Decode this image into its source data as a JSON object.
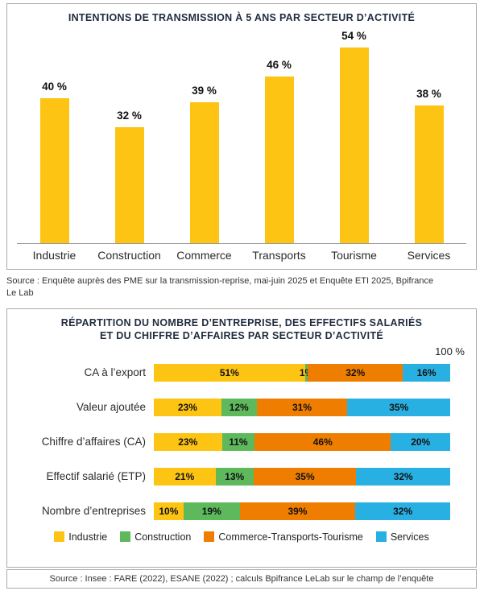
{
  "chart_data": [
    {
      "type": "bar",
      "title": "INTENTIONS DE TRANSMISSION À 5 ANS PAR SECTEUR D’ACTIVITÉ",
      "categories": [
        "Industrie",
        "Construction",
        "Commerce",
        "Transports",
        "Tourisme",
        "Services"
      ],
      "values": [
        40,
        32,
        39,
        46,
        54,
        38
      ],
      "value_labels": [
        "40 %",
        "32 %",
        "39 %",
        "46 %",
        "54 %",
        "38 %"
      ],
      "bar_color": "#FDC413",
      "ylim": [
        0,
        60
      ],
      "legend_position": "none",
      "grid": false
    },
    {
      "type": "bar-horizontal-stacked",
      "title": "RÉPARTITION DU NOMBRE D’ENTREPRISE, DES EFFECTIFS SALARIÉS ET DU CHIFFRE D’AFFAIRES PAR SECTEUR D’ACTIVITÉ",
      "title_lines": [
        "RÉPARTITION DU NOMBRE D’ENTREPRISE, DES EFFECTIFS SALARIÉS",
        "ET DU CHIFFRE D’AFFAIRES PAR SECTEUR D’ACTIVITÉ"
      ],
      "axis_max_label": "100 %",
      "xlim": [
        0,
        100
      ],
      "legend_position": "bottom",
      "categories": [
        "CA à l’export",
        "Valeur ajoutée",
        "Chiffre d’affaires (CA)",
        "Effectif salarié (ETP)",
        "Nombre d’entreprises"
      ],
      "series": [
        {
          "name": "Industrie",
          "color": "#FDC413",
          "values": [
            51,
            23,
            23,
            21,
            10
          ]
        },
        {
          "name": "Construction",
          "color": "#5EB95D",
          "values": [
            1,
            12,
            11,
            13,
            19
          ]
        },
        {
          "name": "Commerce-Transports-Tourisme",
          "color": "#EF7D00",
          "values": [
            32,
            31,
            46,
            35,
            39
          ]
        },
        {
          "name": "Services",
          "color": "#29B0E3",
          "values": [
            16,
            35,
            20,
            32,
            32
          ]
        }
      ],
      "value_suffix": "%"
    }
  ],
  "sources": {
    "top": "Source : Enquête auprès des PME sur la transmission-reprise, mai-juin 2025 et Enquête ETI 2025, Bpifrance Le Lab",
    "bottom": "Source : Insee : FARE (2022), ESANE (2022) ; calculs Bpifrance LeLab sur le champ de l’enquête"
  },
  "colors": {
    "industrie": "#FDC413",
    "construction": "#5EB95D",
    "commerce_transports_tourisme": "#EF7D00",
    "services": "#29B0E3",
    "title_text": "#1f2b3e"
  }
}
